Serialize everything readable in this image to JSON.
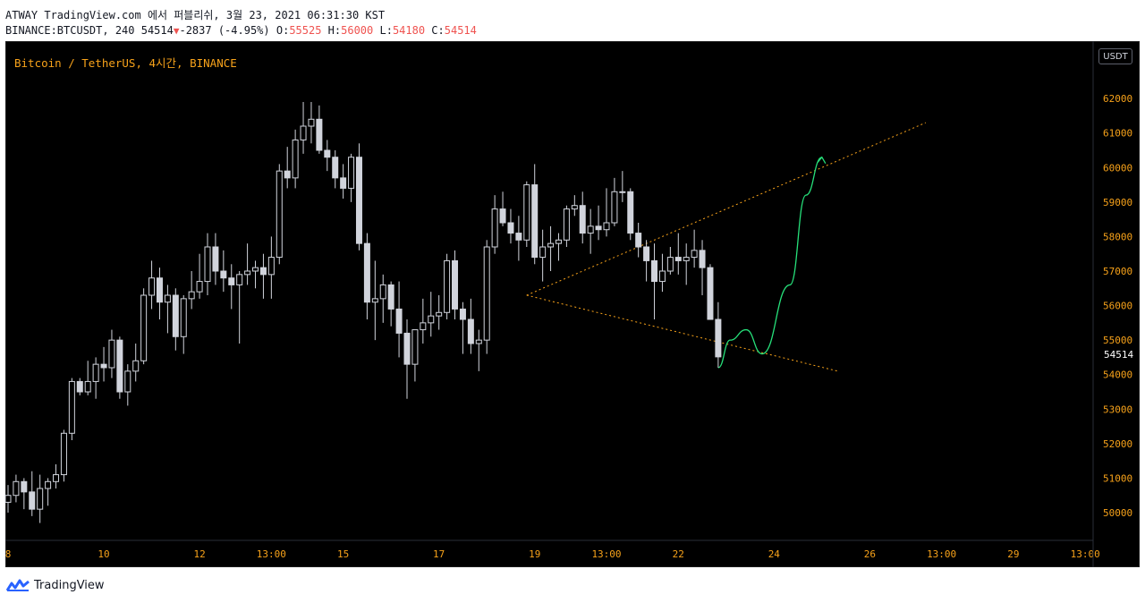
{
  "header": {
    "publish_line": "ATWAY TradingView.com 에서 퍼블리쉬, 3월 23, 2021 06:31:30 KST",
    "symbol_line": "BINANCE:BTCUSDT, 240 54514",
    "change": "-2837 (-4.95%)",
    "o_label": "O:",
    "o_value": "55525",
    "h_label": "H:",
    "h_value": "56000",
    "l_label": "L:",
    "l_value": "54180",
    "c_label": "C:",
    "c_value": "54514"
  },
  "chart_title": "Bitcoin / TetherUS, 4시간, BINANCE",
  "unit_badge": "USDT",
  "current_price_label": "54514",
  "footer": {
    "brand": "TradingView"
  },
  "colors": {
    "background": "#000000",
    "candle": "#d1d4dc",
    "axis_text": "#f7a21a",
    "trendline": "#f7a21a",
    "projection": "#26e07a",
    "price_tag": "#ffffff"
  },
  "chart_data": {
    "type": "candlestick",
    "title": "Bitcoin / TetherUS, 4시간, BINANCE",
    "timeframe": "240",
    "y_ticks": [
      50000,
      51000,
      52000,
      53000,
      54000,
      55000,
      56000,
      57000,
      58000,
      59000,
      60000,
      61000,
      62000
    ],
    "x_tick_labels": [
      {
        "label": "8",
        "bar": 0
      },
      {
        "label": "10",
        "bar": 12
      },
      {
        "label": "12",
        "bar": 24
      },
      {
        "label": "13:00",
        "bar": 33
      },
      {
        "label": "15",
        "bar": 42
      },
      {
        "label": "17",
        "bar": 54
      },
      {
        "label": "19",
        "bar": 66
      },
      {
        "label": "13:00",
        "bar": 75
      },
      {
        "label": "22",
        "bar": 84
      },
      {
        "label": "24",
        "bar": 96
      },
      {
        "label": "26",
        "bar": 108
      },
      {
        "label": "13:00",
        "bar": 117
      },
      {
        "label": "29",
        "bar": 126
      },
      {
        "label": "13:00",
        "bar": 135
      }
    ],
    "ylim": [
      49300,
      63300
    ],
    "candles": [
      [
        50300,
        50800,
        50000,
        50500
      ],
      [
        50500,
        51100,
        50300,
        50900
      ],
      [
        50900,
        51000,
        50100,
        50600
      ],
      [
        50600,
        51200,
        49900,
        50100
      ],
      [
        50100,
        51100,
        49700,
        50700
      ],
      [
        50700,
        51000,
        50200,
        50900
      ],
      [
        50900,
        51400,
        50700,
        51100
      ],
      [
        51100,
        52400,
        50900,
        52300
      ],
      [
        52300,
        53900,
        52100,
        53800
      ],
      [
        53800,
        53900,
        53400,
        53500
      ],
      [
        53500,
        54400,
        53400,
        53800
      ],
      [
        53800,
        54500,
        53300,
        54300
      ],
      [
        54300,
        54800,
        53800,
        54200
      ],
      [
        54200,
        55300,
        53900,
        55000
      ],
      [
        55000,
        55100,
        53300,
        53500
      ],
      [
        53500,
        54300,
        53100,
        54100
      ],
      [
        54100,
        54900,
        53800,
        54400
      ],
      [
        54400,
        56500,
        54300,
        56300
      ],
      [
        56300,
        57300,
        55900,
        56800
      ],
      [
        56800,
        57100,
        55600,
        56100
      ],
      [
        56100,
        56600,
        55200,
        56300
      ],
      [
        56300,
        56500,
        54700,
        55100
      ],
      [
        55100,
        56300,
        54600,
        56200
      ],
      [
        56200,
        57000,
        55900,
        56400
      ],
      [
        56400,
        57500,
        56200,
        56700
      ],
      [
        56700,
        58100,
        56300,
        57700
      ],
      [
        57700,
        58100,
        56600,
        57000
      ],
      [
        57000,
        57600,
        56400,
        56800
      ],
      [
        56800,
        57200,
        55900,
        56600
      ],
      [
        56600,
        57000,
        54900,
        56900
      ],
      [
        56900,
        57800,
        56600,
        57000
      ],
      [
        57000,
        57300,
        56500,
        57100
      ],
      [
        57100,
        57500,
        56200,
        56900
      ],
      [
        56900,
        58000,
        56200,
        57400
      ],
      [
        57400,
        60100,
        57200,
        59900
      ],
      [
        59900,
        60600,
        59400,
        59700
      ],
      [
        59700,
        61100,
        59400,
        60800
      ],
      [
        60800,
        61900,
        60400,
        61200
      ],
      [
        61200,
        61900,
        60700,
        61400
      ],
      [
        61400,
        61800,
        60400,
        60500
      ],
      [
        60500,
        60800,
        59900,
        60300
      ],
      [
        60300,
        60500,
        59400,
        59700
      ],
      [
        59700,
        60100,
        59100,
        59400
      ],
      [
        59400,
        60400,
        59000,
        60300
      ],
      [
        60300,
        60700,
        57600,
        57800
      ],
      [
        57800,
        58100,
        55600,
        56100
      ],
      [
        56100,
        57300,
        55000,
        56200
      ],
      [
        56200,
        56900,
        55500,
        56600
      ],
      [
        56600,
        56700,
        55400,
        55900
      ],
      [
        55900,
        56700,
        54500,
        55200
      ],
      [
        55200,
        55600,
        53300,
        54300
      ],
      [
        54300,
        55300,
        53800,
        55300
      ],
      [
        55300,
        56200,
        54900,
        55500
      ],
      [
        55500,
        56400,
        55100,
        55700
      ],
      [
        55700,
        56300,
        55300,
        55800
      ],
      [
        55800,
        57500,
        55600,
        57300
      ],
      [
        57300,
        57600,
        55600,
        55900
      ],
      [
        55900,
        56100,
        54600,
        55600
      ],
      [
        55600,
        56200,
        54600,
        54900
      ],
      [
        54900,
        55300,
        54100,
        55000
      ],
      [
        55000,
        57900,
        54600,
        57700
      ],
      [
        57700,
        59200,
        57500,
        58800
      ],
      [
        58800,
        59300,
        58300,
        58400
      ],
      [
        58400,
        58800,
        57800,
        58100
      ],
      [
        58100,
        58600,
        57300,
        57900
      ],
      [
        57900,
        59600,
        57700,
        59500
      ],
      [
        59500,
        60100,
        57200,
        57400
      ],
      [
        57400,
        58200,
        56700,
        57700
      ],
      [
        57700,
        58300,
        57000,
        57800
      ],
      [
        57800,
        58100,
        57300,
        57900
      ],
      [
        57900,
        58900,
        57700,
        58800
      ],
      [
        58800,
        59200,
        58600,
        58900
      ],
      [
        58900,
        59300,
        57800,
        58100
      ],
      [
        58100,
        58800,
        57500,
        58300
      ],
      [
        58300,
        58900,
        57900,
        58200
      ],
      [
        58200,
        59400,
        58000,
        58400
      ],
      [
        58400,
        59700,
        58300,
        59300
      ],
      [
        59300,
        59900,
        59000,
        59300
      ],
      [
        59300,
        59400,
        57900,
        58100
      ],
      [
        58100,
        58400,
        57400,
        57700
      ],
      [
        57700,
        57900,
        56700,
        57300
      ],
      [
        57300,
        57800,
        55600,
        56700
      ],
      [
        56700,
        57500,
        56400,
        57000
      ],
      [
        57000,
        57700,
        56900,
        57400
      ],
      [
        57400,
        58100,
        56900,
        57300
      ],
      [
        57300,
        57800,
        56600,
        57400
      ],
      [
        57400,
        58200,
        57100,
        57600
      ],
      [
        57600,
        57900,
        56300,
        57100
      ],
      [
        57100,
        57200,
        55700,
        55600
      ],
      [
        55600,
        56100,
        54200,
        54514
      ]
    ],
    "annotations": [
      {
        "type": "trendline",
        "from": {
          "bar": 65,
          "price": 56300
        },
        "to": {
          "bar": 115,
          "price": 61300
        }
      },
      {
        "type": "trendline",
        "from": {
          "bar": 65,
          "price": 56300
        },
        "to": {
          "bar": 104,
          "price": 54100
        }
      },
      {
        "type": "projection_path",
        "points": [
          {
            "bar": 89,
            "price": 54200
          },
          {
            "bar": 90.5,
            "price": 55000
          },
          {
            "bar": 92.5,
            "price": 55300
          },
          {
            "bar": 94.5,
            "price": 54600
          },
          {
            "bar": 98,
            "price": 56600
          },
          {
            "bar": 100,
            "price": 59200
          },
          {
            "bar": 102,
            "price": 60300
          }
        ]
      }
    ]
  }
}
